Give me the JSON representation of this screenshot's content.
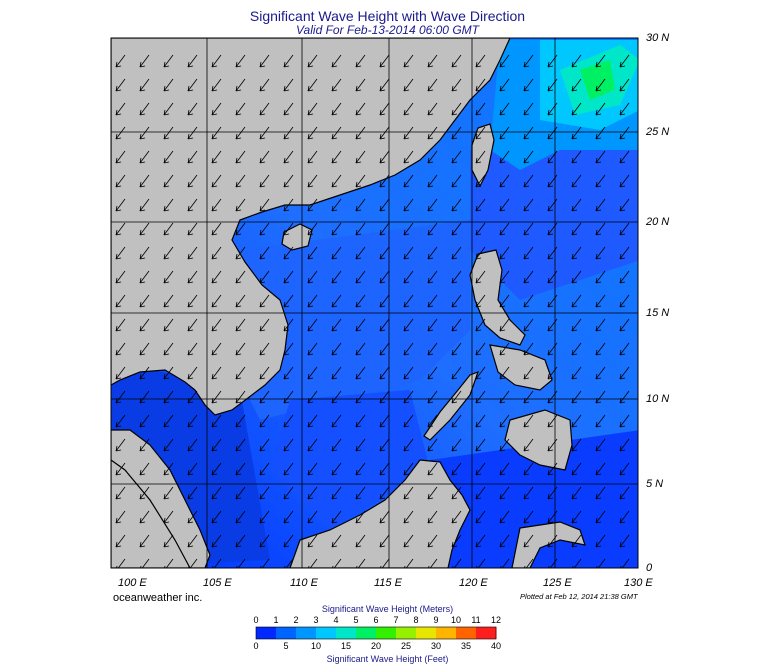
{
  "header": {
    "title": "Significant Wave Height with Wave Direction",
    "subtitle": "Valid For Feb-13-2014 06:00 GMT"
  },
  "map": {
    "longitude_labels": [
      "100 E",
      "105 E",
      "110 E",
      "115 E",
      "120 E",
      "125 E",
      "130 E"
    ],
    "latitude_labels": [
      "30 N",
      "25 N",
      "20 N",
      "15 N",
      "10 N",
      "5 N",
      "0"
    ],
    "land_color": "#c0c0c0",
    "grid_color": "#000000",
    "prevailing_wave_direction": "northeast (arrows point to the southwest)"
  },
  "footer": {
    "brand": "oceanweather inc.",
    "plotted": "Plotted at Feb 12, 2014 21:38 GMT"
  },
  "colorbar": {
    "meters_title": "Significant Wave Height (Meters)",
    "feet_title": "Significant Wave Height (Feet)",
    "meters_ticks": [
      "0",
      "1",
      "2",
      "3",
      "4",
      "5",
      "6",
      "7",
      "8",
      "9",
      "10",
      "11",
      "12"
    ],
    "feet_ticks": [
      "0",
      "5",
      "10",
      "15",
      "20",
      "25",
      "30",
      "35",
      "40"
    ],
    "colors": [
      "#0000c8",
      "#0028ff",
      "#0064ff",
      "#0096ff",
      "#00c8ff",
      "#00e6c8",
      "#00f064",
      "#32f000",
      "#96f000",
      "#e6e600",
      "#ffb400",
      "#ff6400",
      "#ff1e1e"
    ]
  }
}
